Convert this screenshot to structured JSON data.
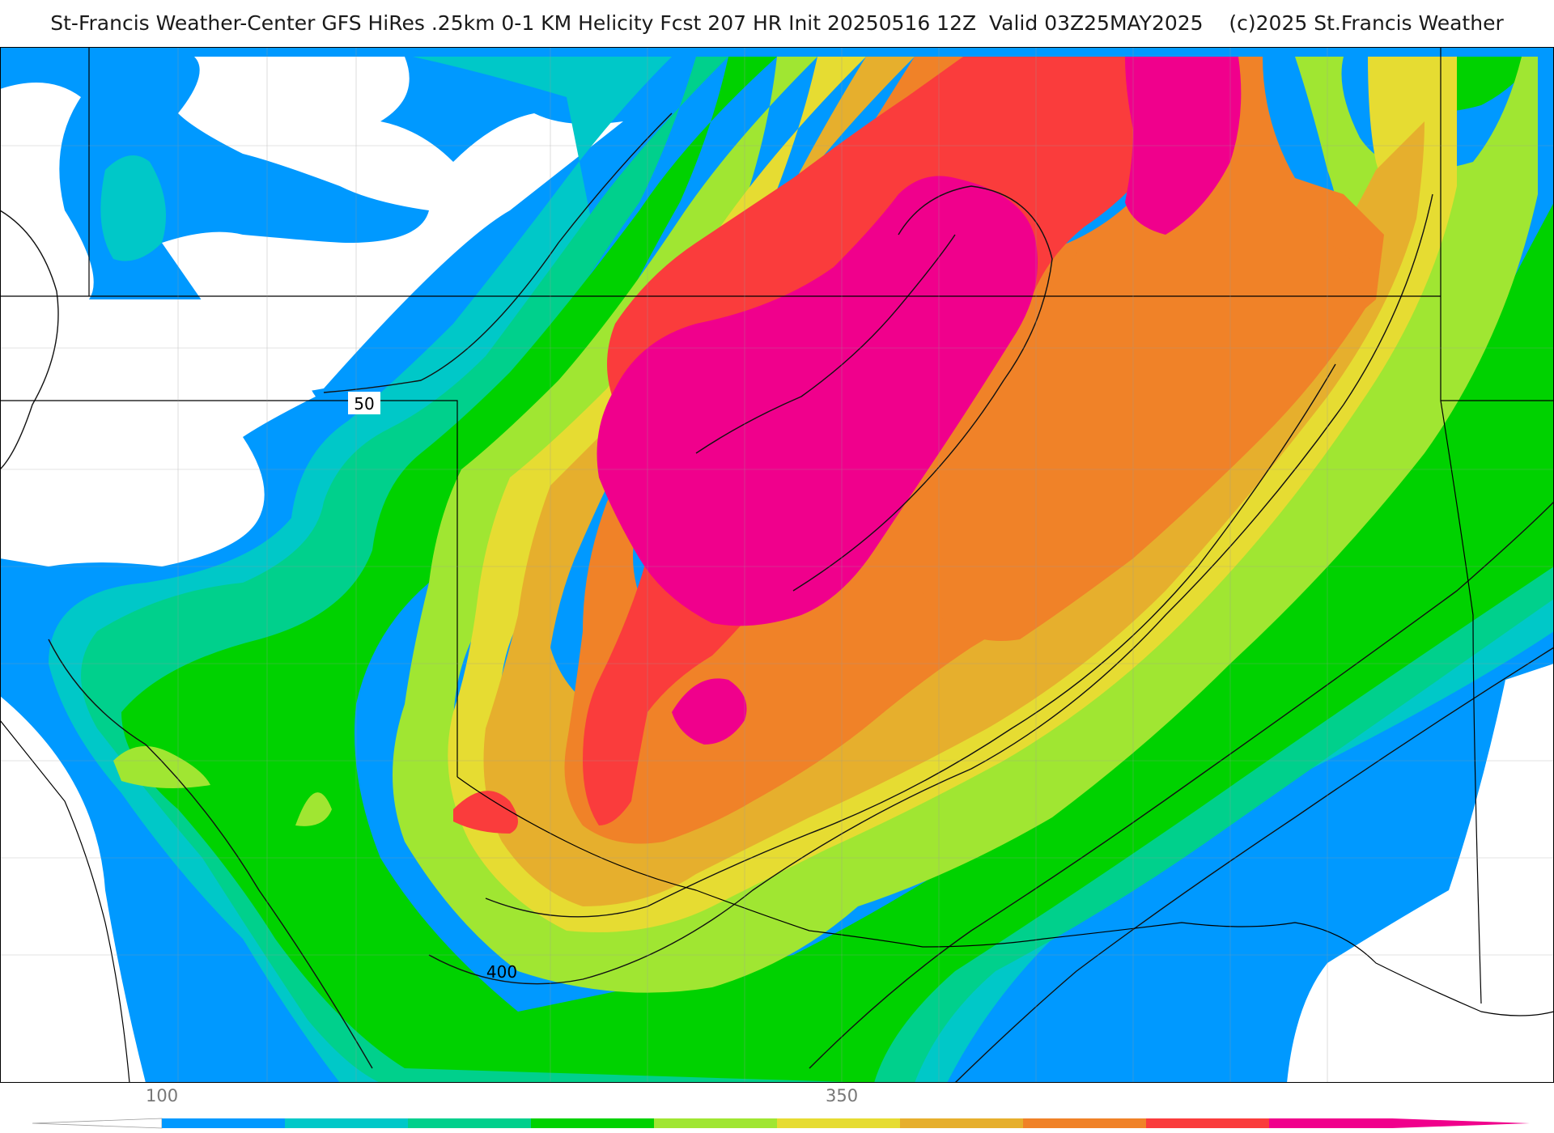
{
  "header": {
    "title": "St-Francis Weather-Center GFS HiRes .25km 0-1 KM Helicity Fcst 207 HR Init 20250516 12Z  Valid 03Z25MAY2025",
    "copyright": "(c)2025 St.Francis Weather"
  },
  "map": {
    "contour_labels": [
      "50",
      "400"
    ]
  },
  "colorbar": {
    "tick_labels": [
      "100",
      "350"
    ],
    "colors": [
      "#0099ff",
      "#00c8c8",
      "#00d08c",
      "#00d200",
      "#a0e632",
      "#e6dc32",
      "#e6af2d",
      "#f08228",
      "#fa3c3c",
      "#f0008c"
    ]
  },
  "legend_colors": {
    "white": "#ffffff",
    "blue": "#0099ff",
    "cyan": "#00c8c8",
    "teal": "#00d08c",
    "green": "#00d200",
    "lightgreen": "#a0e632",
    "yellow": "#e6dc32",
    "gold": "#e6af2d",
    "orange": "#f08228",
    "red": "#fa3c3c",
    "magenta": "#f0008c"
  }
}
